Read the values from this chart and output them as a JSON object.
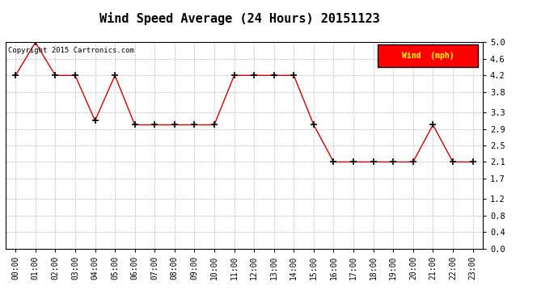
{
  "title": "Wind Speed Average (24 Hours) 20151123",
  "copyright": "Copyright 2015 Cartronics.com",
  "legend_label": "Wind  (mph)",
  "legend_bg": "#FF0000",
  "legend_text_color": "#FFFF00",
  "x_labels": [
    "00:00",
    "01:00",
    "02:00",
    "03:00",
    "04:00",
    "05:00",
    "06:00",
    "07:00",
    "08:00",
    "09:00",
    "10:00",
    "11:00",
    "12:00",
    "13:00",
    "14:00",
    "15:00",
    "16:00",
    "17:00",
    "18:00",
    "19:00",
    "20:00",
    "21:00",
    "22:00",
    "23:00"
  ],
  "y_values": [
    4.2,
    5.0,
    4.2,
    4.2,
    3.1,
    4.2,
    3.0,
    3.0,
    3.0,
    3.0,
    3.0,
    4.2,
    4.2,
    4.2,
    4.2,
    3.0,
    2.1,
    2.1,
    2.1,
    2.1,
    2.1,
    3.0,
    2.1,
    2.1
  ],
  "line_color": "#CC0000",
  "marker": "+",
  "marker_size": 6,
  "marker_color": "#000000",
  "ylim": [
    0.0,
    5.0
  ],
  "yticks": [
    0.0,
    0.4,
    0.8,
    1.2,
    1.7,
    2.1,
    2.5,
    2.9,
    3.3,
    3.8,
    4.2,
    4.6,
    5.0
  ],
  "background_color": "#FFFFFF",
  "grid_color": "#BBBBBB",
  "title_fontsize": 11,
  "copyright_fontsize": 6.5,
  "tick_fontsize": 7,
  "ytick_fontsize": 7.5
}
